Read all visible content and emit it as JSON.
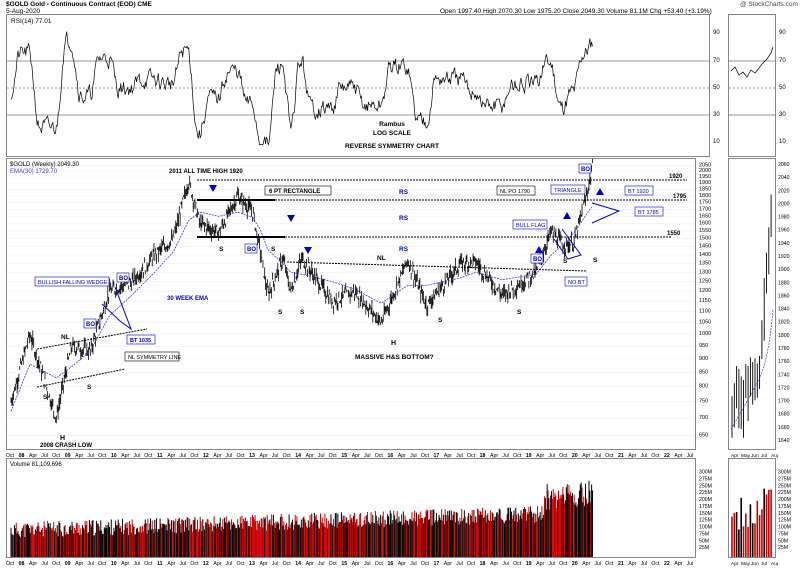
{
  "header": {
    "symbol_line": "$GOLD Gold - Continuous Contract (EOD) CME",
    "date": "5-Aug-2020",
    "ohlc": "Open 1997.40  High 2070.30  Low 1975.20  Close 2049.30  Volume 81.1M  Chg +53.40 (+3.19%)",
    "watermark": "@ StockCharts.com"
  },
  "rsi": {
    "label": "RSI(14) 77.01",
    "levels": [
      "90",
      "70",
      "50",
      "30",
      "10"
    ],
    "annotations": [
      "Rambus",
      "LOG SCALE",
      "REVERSE SYMMETRY CHART"
    ]
  },
  "price": {
    "legend": [
      "$GOLD (Weekly) 2049.30",
      "EMA(30) 1729.70"
    ],
    "y_ticks": [
      "2050",
      "2000",
      "1950",
      "1900",
      "1850",
      "1800",
      "1750",
      "1700",
      "1650",
      "1600",
      "1550",
      "1500",
      "1450",
      "1400",
      "1350",
      "1300",
      "1250",
      "1200",
      "1150",
      "1100",
      "1050",
      "1000",
      "950",
      "900",
      "850",
      "800",
      "750",
      "700",
      "650"
    ],
    "inset_y_ticks": [
      "2060",
      "2040",
      "2020",
      "2000",
      "1980",
      "1960",
      "1940",
      "1920",
      "1900",
      "1880",
      "1860",
      "1840",
      "1820",
      "1800",
      "1780",
      "1760",
      "1740",
      "1720",
      "1700",
      "1680",
      "1660",
      "1640"
    ],
    "annotations": {
      "ath": "2011 ALL TIME HIGH 1920",
      "rect": "6 PT RECTANGLE",
      "rs1": "RS",
      "rs2": "RS",
      "rs3": "RS",
      "nl_top": "NL",
      "nl_left": "NL",
      "wedge": "BULLISH FALLING WEDGE",
      "ema30": "30 WEEK EMA",
      "bo1": "BO",
      "bo2": "BO",
      "bo3": "BO",
      "bo4": "BO",
      "bo5": "BO",
      "bt1035": "BT 1035",
      "nl_sym": "NL SYMMETRY LINE",
      "crash": "2008 CRASH LOW",
      "h1": "H",
      "h2": "H",
      "s_labels": [
        "S",
        "S",
        "S",
        "S",
        "S",
        "S",
        "S",
        "S",
        "S",
        "S"
      ],
      "hs": "MASSIVE H&S BOTTOM?",
      "nl_po": "NL PO 1790",
      "triangle": "TRIANGLE",
      "bull_flag": "BULL FLAG",
      "no_bt": "NO BT",
      "bt1920": "BT 1920",
      "bt1785": "BT 1785",
      "lvl1920": "1920",
      "lvl1795": "1795",
      "lvl1550": "1550"
    }
  },
  "x_axis": {
    "labels": [
      "Oct",
      "08",
      "Apr",
      "Jul",
      "Oct",
      "09",
      "Apr",
      "Jul",
      "Oct",
      "10",
      "Apr",
      "Jul",
      "Oct",
      "11",
      "Apr",
      "Jul",
      "Oct",
      "12",
      "Apr",
      "Jul",
      "Oct",
      "13",
      "Apr",
      "Jul",
      "Oct",
      "14",
      "Apr",
      "Jul",
      "Oct",
      "15",
      "Apr",
      "Jul",
      "Oct",
      "16",
      "Apr",
      "Jul",
      "Oct",
      "17",
      "Apr",
      "Jul",
      "Oct",
      "18",
      "Apr",
      "Jul",
      "Oct",
      "19",
      "Apr",
      "Jul",
      "Oct",
      "20",
      "Apr",
      "Jul",
      "Oct",
      "21",
      "Apr",
      "Jul",
      "Oct",
      "22",
      "Apr",
      "Jul"
    ],
    "inset_labels": [
      "Apr",
      "May",
      "Jun",
      "Jul",
      "Aug"
    ]
  },
  "volume": {
    "label": "Volume 81,109,696",
    "y_ticks": [
      "300M",
      "275M",
      "250M",
      "225M",
      "200M",
      "175M",
      "150M",
      "125M",
      "100M",
      "75M",
      "50M",
      "25M"
    ],
    "inset_y_ticks": [
      "300M",
      "275M",
      "250M",
      "225M",
      "200M",
      "175M",
      "150M",
      "125M",
      "100M",
      "75M",
      "50M",
      "25M"
    ]
  },
  "colors": {
    "up": "#000000",
    "down": "#cc0000",
    "ema": "#3a3ad0",
    "annot": "#0000cc",
    "rsi_fill": "#6b8e4e"
  },
  "chart_data": {
    "type": "line",
    "title": "$GOLD Gold - Continuous Contract (EOD) CME",
    "scale": "log",
    "ylim": [
      640,
      2070
    ],
    "x": [
      "2007-10",
      "2008-03",
      "2008-10",
      "2009-02",
      "2009-07",
      "2009-12",
      "2010-06",
      "2010-12",
      "2011-05",
      "2011-09",
      "2011-12",
      "2012-05",
      "2012-10",
      "2013-02",
      "2013-04",
      "2013-06",
      "2013-10",
      "2013-12",
      "2014-03",
      "2014-11",
      "2015-05",
      "2015-12",
      "2016-07",
      "2016-12",
      "2017-09",
      "2018-01",
      "2018-08",
      "2019-05",
      "2019-09",
      "2019-12",
      "2020-03",
      "2020-06",
      "2020-08"
    ],
    "series": [
      {
        "name": "$GOLD (Weekly) 2049.30",
        "values": [
          750,
          1000,
          700,
          950,
          930,
          1200,
          1250,
          1400,
          1500,
          1920,
          1600,
          1540,
          1800,
          1680,
          1420,
          1180,
          1380,
          1200,
          1380,
          1150,
          1200,
          1050,
          1370,
          1130,
          1350,
          1360,
          1180,
          1300,
          1550,
          1460,
          1470,
          1760,
          2049
        ]
      },
      {
        "name": "EMA(30) 1729.70",
        "values": [
          720,
          880,
          830,
          870,
          930,
          1080,
          1180,
          1300,
          1420,
          1620,
          1680,
          1650,
          1680,
          1640,
          1560,
          1430,
          1350,
          1300,
          1290,
          1250,
          1210,
          1140,
          1230,
          1230,
          1270,
          1300,
          1260,
          1290,
          1400,
          1460,
          1540,
          1650,
          1730
        ]
      }
    ],
    "rsi": {
      "name": "RSI(14) 77.01",
      "ylim": [
        10,
        100
      ]
    },
    "volume": {
      "name": "Volume 81,109,696",
      "unit": "M",
      "ylim": [
        0,
        320
      ]
    }
  }
}
